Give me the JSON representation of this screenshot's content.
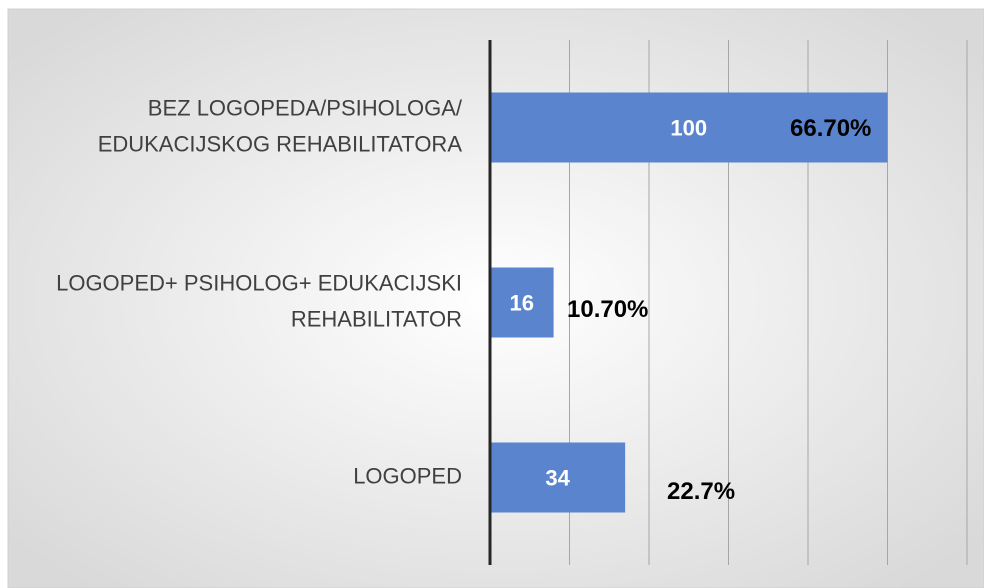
{
  "chart_data": {
    "type": "bar",
    "orientation": "horizontal",
    "categories": [
      [
        "BEZ LOGOPEDA/PSIHOLOGA/",
        "EDUKACIJSKOG REHABILITATORA"
      ],
      [
        "LOGOPED+ PSIHOLOG+ EDUKACIJSKI",
        "REHABILITATOR"
      ],
      [
        "LOGOPED"
      ]
    ],
    "values": [
      100,
      16,
      34
    ],
    "percent_labels": [
      "66.70%",
      "10.70%",
      "22.7%"
    ],
    "color": "#5b84cf",
    "xlim": [
      0,
      120
    ],
    "xticks": [
      0,
      20,
      40,
      60,
      80,
      100,
      120
    ],
    "grid": true
  }
}
